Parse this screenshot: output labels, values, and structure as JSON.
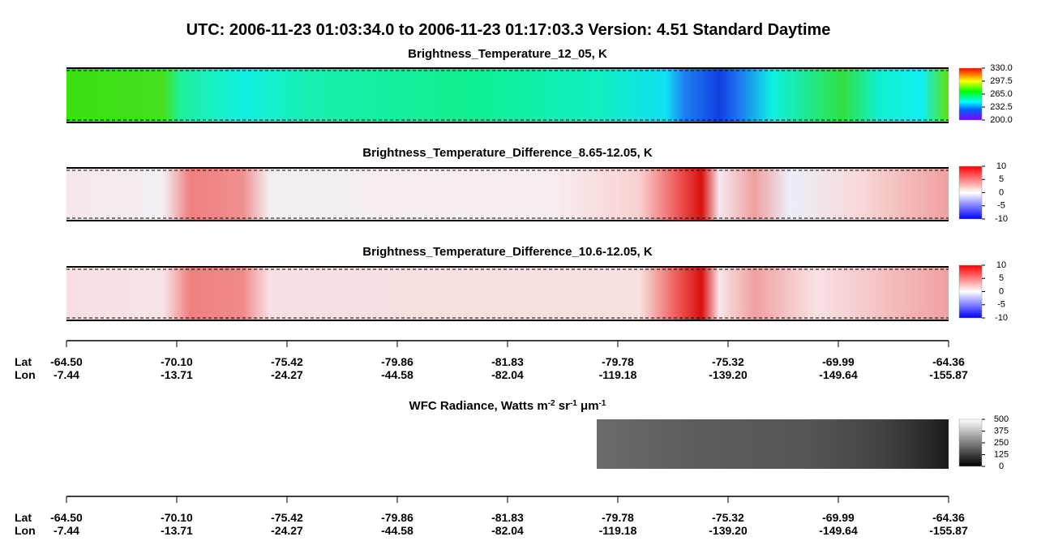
{
  "title": "UTC:  2006-11-23   01:03:34.0  to  2006-11-23   01:17:03.3    Version: 4.51  Standard Daytime",
  "panels": [
    {
      "title": "Brightness_Temperature_12_05, K",
      "colorbar": {
        "ticks": [
          {
            "value": 330,
            "label": "330.0"
          },
          {
            "value": 297.5,
            "label": "297.5"
          },
          {
            "value": 265,
            "label": "265.0"
          },
          {
            "value": 232.5,
            "label": "232.5"
          },
          {
            "value": 200,
            "label": "200.0"
          }
        ]
      }
    },
    {
      "title": "Brightness_Temperature_Difference_8.65-12.05, K",
      "colorbar": {
        "ticks": [
          10,
          5,
          0,
          -5,
          -10
        ]
      }
    },
    {
      "title": "Brightness_Temperature_Difference_10.6-12.05, K",
      "colorbar": {
        "ticks": [
          10,
          5,
          0,
          -5,
          -10
        ]
      }
    },
    {
      "title_parts": [
        "WFC Radiance, Watts m",
        "-2",
        " sr",
        "-1",
        " μm",
        "-1"
      ],
      "colorbar": {
        "ticks": [
          500,
          375,
          250,
          125,
          0
        ]
      }
    }
  ],
  "axes": [
    {
      "lat_label": "Lat",
      "lon_label": "Lon",
      "lat": [
        "-64.50",
        "-70.10",
        "-75.42",
        "-79.86",
        "-81.83",
        "-79.78",
        "-75.32",
        "-69.99",
        "-64.36"
      ],
      "lon": [
        "-7.44",
        "-13.71",
        "-24.27",
        "-44.58",
        "-82.04",
        "-119.18",
        "-139.20",
        "-149.64",
        "-155.87"
      ]
    },
    {
      "lat_label": "Lat",
      "lon_label": "Lon",
      "lat": [
        "-64.50",
        "-70.10",
        "-75.42",
        "-79.86",
        "-81.83",
        "-79.78",
        "-75.32",
        "-69.99",
        "-64.36"
      ],
      "lon": [
        "-7.44",
        "-13.71",
        "-24.27",
        "-44.58",
        "-82.04",
        "-119.18",
        "-139.20",
        "-149.64",
        "-155.87"
      ]
    }
  ]
}
